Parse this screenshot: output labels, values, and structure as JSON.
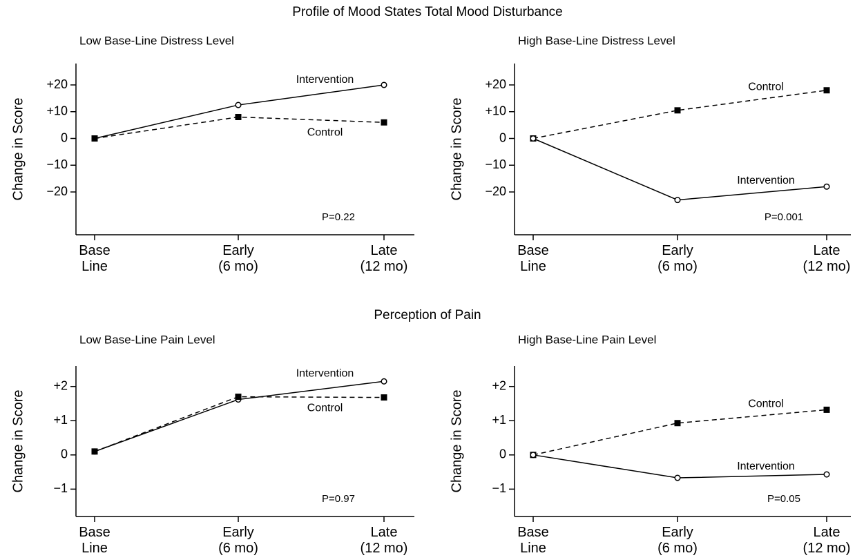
{
  "headings": [
    "Profile of Mood States Total Mood Disturbance",
    "Perception of Pain"
  ],
  "chart_data": [
    {
      "type": "line",
      "title": "Low Base-Line Distress Level",
      "ylabel": "Change in Score",
      "categories": [
        "Base\nLine",
        "Early\n(6 mo)",
        "Late\n(12 mo)"
      ],
      "series": [
        {
          "name": "Intervention",
          "color": "#000000",
          "line_style": "solid",
          "marker": "circle",
          "values": [
            0,
            12.5,
            20
          ]
        },
        {
          "name": "Control",
          "color": "#000000",
          "line_style": "dashed",
          "marker": "square",
          "values": [
            0,
            8,
            6
          ]
        }
      ],
      "ylim": [
        -36,
        28
      ],
      "yticks": [
        {
          "value": 20,
          "label": "+20"
        },
        {
          "value": 10,
          "label": "+10"
        },
        0,
        {
          "value": -10,
          "label": "−10"
        },
        {
          "value": -20,
          "label": "−20"
        }
      ],
      "annotation": "P=0.22"
    },
    {
      "type": "line",
      "title": "High Base-Line Distress Level",
      "ylabel": "Change in Score",
      "categories": [
        "Base\nLine",
        "Early\n(6 mo)",
        "Late\n(12 mo)"
      ],
      "series": [
        {
          "name": "Control",
          "color": "#000000",
          "line_style": "dashed",
          "marker": "square",
          "values": [
            0,
            10.5,
            18
          ]
        },
        {
          "name": "Intervention",
          "color": "#000000",
          "line_style": "solid",
          "marker": "circle",
          "values": [
            0,
            -23,
            -18
          ]
        }
      ],
      "ylim": [
        -36,
        28
      ],
      "yticks": [
        {
          "value": 20,
          "label": "+20"
        },
        {
          "value": 10,
          "label": "+10"
        },
        0,
        {
          "value": -10,
          "label": "−10"
        },
        {
          "value": -20,
          "label": "−20"
        }
      ],
      "annotation": "P=0.001"
    },
    {
      "type": "line",
      "title": "Low Base-Line Pain Level",
      "ylabel": "Change in Score",
      "categories": [
        "Base\nLine",
        "Early\n(6 mo)",
        "Late\n(12 mo)"
      ],
      "series": [
        {
          "name": "Intervention",
          "color": "#000000",
          "line_style": "solid",
          "marker": "circle",
          "values": [
            0.1,
            1.62,
            2.15
          ]
        },
        {
          "name": "Control",
          "color": "#000000",
          "line_style": "dashed",
          "marker": "square",
          "values": [
            0.1,
            1.7,
            1.68
          ]
        }
      ],
      "ylim": [
        -1.8,
        2.6
      ],
      "yticks": [
        {
          "value": 2,
          "label": "+2"
        },
        {
          "value": 1,
          "label": "+1"
        },
        0,
        {
          "value": -1,
          "label": "−1"
        }
      ],
      "annotation": "P=0.97"
    },
    {
      "type": "line",
      "title": "High Base-Line Pain Level",
      "ylabel": "Change in Score",
      "categories": [
        "Base\nLine",
        "Early\n(6 mo)",
        "Late\n(12 mo)"
      ],
      "series": [
        {
          "name": "Control",
          "color": "#000000",
          "line_style": "dashed",
          "marker": "square",
          "values": [
            0,
            0.93,
            1.32
          ]
        },
        {
          "name": "Intervention",
          "color": "#000000",
          "line_style": "solid",
          "marker": "circle",
          "values": [
            0,
            -0.67,
            -0.57
          ]
        }
      ],
      "ylim": [
        -1.8,
        2.6
      ],
      "yticks": [
        {
          "value": 2,
          "label": "+2"
        },
        {
          "value": 1,
          "label": "+1"
        },
        0,
        {
          "value": -1,
          "label": "−1"
        }
      ],
      "annotation": "P=0.05"
    }
  ]
}
